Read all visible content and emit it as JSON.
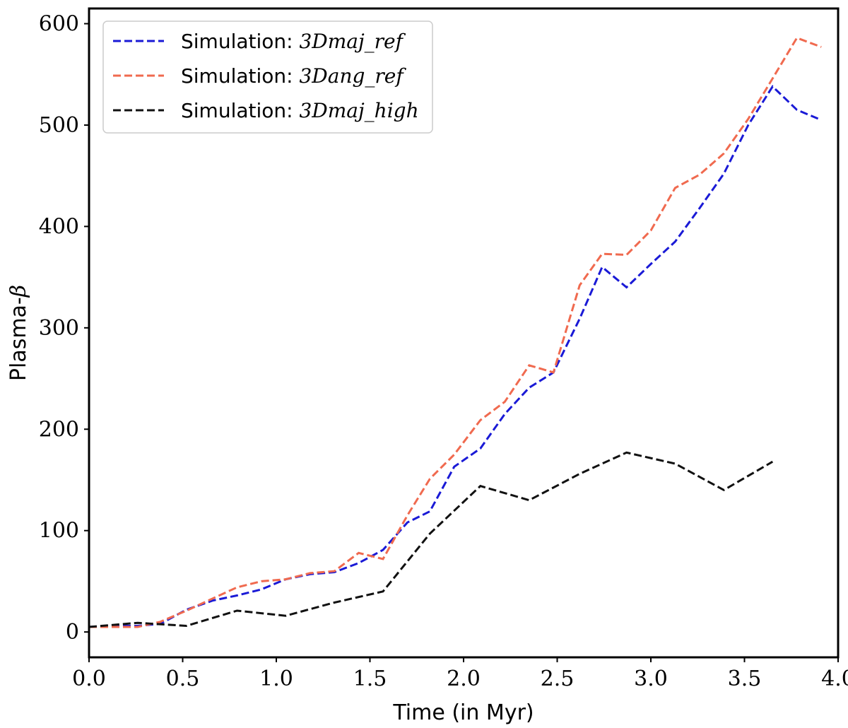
{
  "chart_data": {
    "type": "line",
    "title": "",
    "xlabel": "Time (in Myr)",
    "ylabel_text": "Plasma-",
    "ylabel_symbol": "β",
    "xlim": [
      0.0,
      4.0
    ],
    "ylim": [
      -25,
      615
    ],
    "xticks": [
      0.0,
      0.5,
      1.0,
      1.5,
      2.0,
      2.5,
      3.0,
      3.5,
      4.0
    ],
    "xtick_labels": [
      "0.0",
      "0.5",
      "1.0",
      "1.5",
      "2.0",
      "2.5",
      "3.0",
      "3.5",
      "4.0"
    ],
    "yticks": [
      0,
      100,
      200,
      300,
      400,
      500,
      600
    ],
    "ytick_labels": [
      "0",
      "100",
      "200",
      "300",
      "400",
      "500",
      "600"
    ],
    "legend_position": "top-left",
    "series": [
      {
        "name": "Simulation: 3Dmaj_ref",
        "label_prefix": "Simulation: ",
        "label_math": "3Dmaj_ref",
        "color": "#1a1ad6",
        "style": "dashed",
        "x": [
          0.0,
          0.13,
          0.26,
          0.38,
          0.52,
          0.66,
          0.79,
          0.92,
          1.05,
          1.18,
          1.31,
          1.44,
          1.57,
          1.7,
          1.82,
          1.95,
          2.09,
          2.22,
          2.35,
          2.48,
          2.62,
          2.74,
          2.87,
          3.0,
          3.13,
          3.26,
          3.39,
          3.52,
          3.65,
          3.78,
          3.91
        ],
        "y": [
          5,
          6,
          6,
          8,
          22,
          31,
          36,
          42,
          52,
          57,
          59,
          68,
          81,
          108,
          119,
          163,
          181,
          215,
          241,
          256,
          309,
          360,
          340,
          363,
          385,
          418,
          452,
          500,
          538,
          515,
          505
        ]
      },
      {
        "name": "Simulation: 3Dang_ref",
        "label_prefix": "Simulation: ",
        "label_math": "3Dang_ref",
        "color": "#f06a4f",
        "style": "dashed",
        "x": [
          0.0,
          0.13,
          0.26,
          0.38,
          0.52,
          0.66,
          0.79,
          0.92,
          1.05,
          1.18,
          1.31,
          1.44,
          1.57,
          1.7,
          1.82,
          1.95,
          2.09,
          2.22,
          2.35,
          2.48,
          2.62,
          2.74,
          2.87,
          3.0,
          3.13,
          3.26,
          3.39,
          3.52,
          3.65,
          3.78,
          3.91
        ],
        "y": [
          5,
          5,
          5,
          10,
          21,
          33,
          44,
          50,
          52,
          58,
          60,
          78,
          72,
          115,
          151,
          175,
          209,
          227,
          263,
          256,
          342,
          373,
          372,
          396,
          438,
          451,
          472,
          506,
          546,
          586,
          577
        ]
      },
      {
        "name": "Simulation: 3Dmaj_high",
        "label_prefix": "Simulation: ",
        "label_math": "3Dmaj_high",
        "color": "#111111",
        "style": "dashed",
        "x": [
          0.0,
          0.26,
          0.52,
          0.79,
          1.05,
          1.31,
          1.57,
          1.82,
          2.09,
          2.35,
          2.62,
          2.87,
          3.13,
          3.39,
          3.65
        ],
        "y": [
          5,
          9,
          6,
          21,
          16,
          29,
          40,
          97,
          144,
          130,
          156,
          177,
          166,
          140,
          168
        ]
      }
    ]
  }
}
